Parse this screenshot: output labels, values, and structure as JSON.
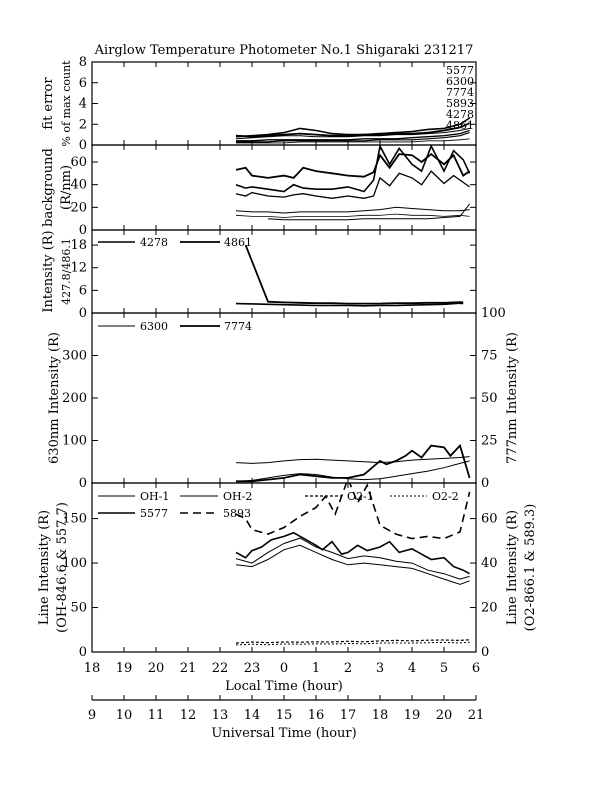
{
  "title": "Airglow Temperature Photometer No.1  Shigaraki  231217",
  "x_label_local": "Local Time (hour)",
  "x_label_ut": "Universal Time (hour)",
  "x_ticks_local": [
    "18",
    "19",
    "20",
    "21",
    "22",
    "23",
    "0",
    "1",
    "2",
    "3",
    "4",
    "5",
    "6"
  ],
  "x_ticks_ut": [
    "9",
    "10",
    "11",
    "12",
    "13",
    "14",
    "15",
    "16",
    "17",
    "18",
    "19",
    "20",
    "21"
  ],
  "chart_data": [
    {
      "id": "fit-error",
      "type": "line",
      "ylabel": "fit error",
      "ylabel2": "% of max count",
      "yticks": [
        "0",
        "2",
        "4",
        "6",
        "8"
      ],
      "ylim": [
        0,
        8
      ],
      "x_units": "local time hour (18-30, 24=0 LT)",
      "legend": [
        "5577",
        "6300",
        "7774",
        "5893",
        "4278",
        "4861"
      ],
      "series": [
        {
          "name": "5577",
          "x": [
            22.5,
            23,
            23.5,
            24,
            24.5,
            25,
            25.5,
            26,
            26.5,
            27,
            27.5,
            28,
            28.5,
            29,
            29.5,
            29.8
          ],
          "values": [
            0.8,
            0.9,
            1.0,
            1.2,
            1.6,
            1.4,
            1.1,
            1.0,
            1.0,
            1.1,
            1.2,
            1.3,
            1.5,
            1.6,
            2.0,
            2.6
          ]
        },
        {
          "name": "6300",
          "x": [
            22.5,
            23,
            23.5,
            24,
            24.5,
            25,
            25.5,
            26,
            26.5,
            27,
            27.5,
            28,
            28.5,
            29,
            29.5,
            29.8
          ],
          "values": [
            0.6,
            0.7,
            0.8,
            0.9,
            0.9,
            0.8,
            0.8,
            0.8,
            0.9,
            0.9,
            1.0,
            1.0,
            1.1,
            1.2,
            1.4,
            1.6
          ]
        },
        {
          "name": "7774",
          "x": [
            22.5,
            23,
            23.5,
            24,
            24.5,
            25,
            25.5,
            26,
            26.5,
            27,
            27.5,
            28,
            28.5,
            29,
            29.5,
            29.8
          ],
          "values": [
            0.4,
            0.4,
            0.5,
            0.5,
            0.5,
            0.5,
            0.5,
            0.5,
            0.6,
            0.6,
            0.6,
            0.7,
            0.8,
            0.9,
            1.1,
            1.4
          ]
        },
        {
          "name": "5893",
          "x": [
            22.5,
            23,
            23.5,
            24,
            24.5,
            25,
            25.5,
            26,
            26.5,
            27,
            27.5,
            28,
            28.5,
            29,
            29.5,
            29.8
          ],
          "values": [
            0.9,
            0.8,
            0.9,
            1.0,
            1.1,
            1.0,
            0.9,
            0.9,
            1.0,
            1.0,
            1.1,
            1.1,
            1.2,
            1.4,
            1.7,
            2.1
          ]
        },
        {
          "name": "4278",
          "x": [
            22.5,
            23,
            23.5,
            24,
            24.5,
            25,
            25.5,
            26,
            26.5,
            27,
            27.5,
            28,
            28.5,
            29,
            29.5,
            29.8
          ],
          "values": [
            0.2,
            0.2,
            0.2,
            0.2,
            0.3,
            0.3,
            0.3,
            0.3,
            0.3,
            0.3,
            0.3,
            0.3,
            0.4,
            0.4,
            0.5,
            0.6
          ]
        },
        {
          "name": "4861",
          "x": [
            22.5,
            23,
            23.5,
            24,
            24.5,
            25,
            25.5,
            26,
            26.5,
            27,
            27.5,
            28,
            28.5,
            29,
            29.5,
            29.8
          ],
          "values": [
            0.3,
            0.3,
            0.3,
            0.4,
            0.4,
            0.4,
            0.4,
            0.4,
            0.4,
            0.5,
            0.5,
            0.5,
            0.6,
            0.7,
            0.9,
            1.2
          ]
        }
      ]
    },
    {
      "id": "background",
      "type": "line",
      "ylabel": "background",
      "ylabel2": "(R/nm)",
      "yticks": [
        "0",
        "20",
        "40",
        "60"
      ],
      "ylim": [
        0,
        75
      ],
      "x_units": "local time hour (18-30, 24=0 LT)",
      "series": [
        {
          "x": [
            22.5,
            22.8,
            23,
            23.5,
            24,
            24.3,
            24.6,
            25,
            25.5,
            26,
            26.5,
            26.8,
            27,
            27.3,
            27.6,
            28,
            28.3,
            28.6,
            29,
            29.3,
            29.6,
            29.8
          ],
          "values": [
            53,
            55,
            48,
            46,
            48,
            46,
            55,
            52,
            50,
            48,
            47,
            51,
            66,
            55,
            67,
            66,
            60,
            67,
            58,
            66,
            48,
            52
          ]
        },
        {
          "x": [
            22.5,
            22.8,
            23,
            23.5,
            24,
            24.3,
            24.6,
            25,
            25.5,
            26,
            26.5,
            26.8,
            27,
            27.3,
            27.6,
            28,
            28.3,
            28.6,
            29,
            29.3,
            29.6,
            29.8
          ],
          "values": [
            40,
            37,
            38,
            36,
            34,
            40,
            37,
            36,
            36,
            38,
            34,
            44,
            74,
            58,
            72,
            58,
            52,
            74,
            52,
            70,
            62,
            50
          ]
        },
        {
          "x": [
            22.5,
            22.8,
            23,
            23.5,
            24,
            24.3,
            24.6,
            25,
            25.5,
            26,
            26.5,
            26.8,
            27,
            27.3,
            27.6,
            28,
            28.3,
            28.6,
            29,
            29.3,
            29.6,
            29.8
          ],
          "values": [
            32,
            30,
            33,
            30,
            29,
            31,
            32,
            30,
            28,
            30,
            28,
            30,
            46,
            39,
            50,
            46,
            40,
            52,
            41,
            48,
            42,
            38
          ]
        },
        {
          "x": [
            22.5,
            23,
            23.5,
            24,
            24.5,
            25,
            25.5,
            26,
            26.5,
            27,
            27.5,
            28,
            28.5,
            29,
            29.5,
            29.8
          ],
          "values": [
            17,
            16,
            16,
            15,
            16,
            16,
            16,
            16,
            17,
            18,
            20,
            19,
            18,
            17,
            17,
            18
          ]
        },
        {
          "x": [
            22.5,
            23,
            23.5,
            24,
            24.5,
            25,
            25.5,
            26,
            26.5,
            27,
            27.5,
            28,
            28.5,
            29,
            29.5,
            29.8
          ],
          "values": [
            13,
            12,
            12,
            11,
            12,
            12,
            12,
            12,
            13,
            13,
            14,
            13,
            13,
            12,
            13,
            12
          ]
        },
        {
          "x": [
            23.5,
            24,
            24.5,
            25,
            25.5,
            26,
            26.5,
            27,
            27.5,
            28,
            28.5,
            29,
            29.5,
            29.8
          ],
          "values": [
            10,
            9,
            9,
            9,
            9,
            9,
            10,
            10,
            10,
            10,
            10,
            11,
            12,
            23
          ]
        }
      ]
    },
    {
      "id": "intensity-4278-4861",
      "type": "line",
      "ylabel": "Intensity (R)",
      "ylabel2": "427.8/486.1",
      "yticks": [
        "0",
        "6",
        "12",
        "18"
      ],
      "ylim": [
        0,
        22
      ],
      "x_units": "local time hour (18-30, 24=0 LT)",
      "legend": [
        "4278",
        "4861"
      ],
      "series": [
        {
          "name": "4278",
          "x": [
            22.5,
            23,
            23.5,
            24,
            24.5,
            25,
            25.5,
            26,
            26.5,
            27,
            27.5,
            28,
            28.5,
            29,
            29.5,
            29.6
          ],
          "values": [
            2.5,
            2.4,
            2.3,
            2.2,
            2.1,
            2.0,
            2.0,
            2.0,
            1.9,
            2.0,
            2.0,
            2.1,
            2.2,
            2.3,
            2.6,
            2.5
          ]
        },
        {
          "name": "4861",
          "x": [
            22.8,
            23.5,
            24,
            24.5,
            25,
            25.5,
            26,
            26.5,
            27,
            27.5,
            28,
            28.5,
            29,
            29.5,
            29.6
          ],
          "values": [
            18,
            3,
            2.8,
            2.7,
            2.6,
            2.6,
            2.5,
            2.5,
            2.5,
            2.6,
            2.6,
            2.7,
            2.7,
            2.9,
            2.8
          ]
        }
      ]
    },
    {
      "id": "intensity-6300-7774",
      "type": "line",
      "ylabel": "630nm Intensity (R)",
      "ylabel_right": "777nm Intensity (R)",
      "yticks": [
        "0",
        "100",
        "200",
        "300"
      ],
      "ylim": [
        0,
        400
      ],
      "yticks_right": [
        "0",
        "25",
        "50",
        "75",
        "100"
      ],
      "ylim_right": [
        0,
        100
      ],
      "x_units": "local time hour (18-30, 24=0 LT)",
      "legend": [
        "6300",
        "7774"
      ],
      "series": [
        {
          "name": "6300",
          "axis": "left",
          "x": [
            22.5,
            23,
            23.5,
            24,
            24.5,
            25,
            25.5,
            26,
            26.5,
            27,
            27.5,
            28,
            28.5,
            29,
            29.5,
            29.8
          ],
          "values": [
            48,
            46,
            48,
            52,
            55,
            56,
            54,
            52,
            50,
            48,
            50,
            54,
            56,
            58,
            60,
            62
          ]
        },
        {
          "name": "7774",
          "axis": "right",
          "x": [
            22.5,
            23,
            23.5,
            24,
            24.5,
            25,
            25.5,
            26,
            26.5,
            27,
            27.2,
            27.5,
            27.8,
            28,
            28.3,
            28.6,
            29,
            29.2,
            29.5,
            29.8
          ],
          "values": [
            1,
            1,
            2,
            3,
            5,
            4,
            3,
            3,
            5,
            13,
            11,
            13,
            16,
            19,
            15,
            22,
            21,
            16,
            22,
            3
          ]
        },
        {
          "name": "",
          "axis": "left",
          "x": [
            22.5,
            23,
            23.5,
            24,
            24.5,
            25,
            25.5,
            26,
            26.5,
            27,
            27.5,
            28,
            28.5,
            29,
            29.5,
            29.8
          ],
          "values": [
            4,
            6,
            12,
            18,
            22,
            20,
            14,
            10,
            8,
            10,
            16,
            22,
            28,
            36,
            46,
            52
          ]
        }
      ]
    },
    {
      "id": "line-intensity",
      "type": "line",
      "ylabel": "Line Intensity (R)",
      "ylabel2": "(OH-846.6 & 557.7)",
      "ylabel_right": "Line Intensity (R)",
      "ylabel_right2": "(O2-866.1 & 589.3)",
      "yticks": [
        "0",
        "50",
        "100",
        "150"
      ],
      "ylim": [
        0,
        190
      ],
      "yticks_right": [
        "0",
        "20",
        "40",
        "60"
      ],
      "ylim_right": [
        0,
        76
      ],
      "x_units": "local time hour (18-30, 24=0 LT)",
      "legend": [
        "OH-1",
        "OH-2",
        "O2-1",
        "O2-2",
        "5577",
        "5893"
      ],
      "series": [
        {
          "name": "OH-1",
          "axis": "left",
          "x": [
            22.5,
            23,
            23.5,
            24,
            24.5,
            25,
            25.5,
            26,
            26.5,
            27,
            27.5,
            28,
            28.5,
            29,
            29.5,
            29.8
          ],
          "values": [
            105,
            100,
            112,
            122,
            128,
            118,
            112,
            105,
            108,
            106,
            102,
            100,
            92,
            88,
            82,
            85
          ]
        },
        {
          "name": "OH-2",
          "axis": "left",
          "x": [
            22.5,
            23,
            23.5,
            24,
            24.5,
            25,
            25.5,
            26,
            26.5,
            27,
            27.5,
            28,
            28.5,
            29,
            29.5,
            29.8
          ],
          "values": [
            98,
            96,
            104,
            115,
            120,
            112,
            104,
            98,
            100,
            98,
            96,
            94,
            88,
            82,
            76,
            80
          ]
        },
        {
          "name": "5577",
          "axis": "left",
          "x": [
            22.5,
            22.8,
            23,
            23.3,
            23.6,
            24,
            24.3,
            24.6,
            25,
            25.2,
            25.5,
            25.8,
            26,
            26.3,
            26.6,
            27,
            27.3,
            27.6,
            28,
            28.3,
            28.6,
            29,
            29.3,
            29.6,
            29.8
          ],
          "values": [
            112,
            106,
            114,
            118,
            126,
            130,
            134,
            128,
            120,
            115,
            124,
            110,
            112,
            120,
            114,
            118,
            124,
            112,
            116,
            110,
            104,
            106,
            96,
            92,
            88
          ]
        },
        {
          "name": "5893",
          "axis": "right",
          "x": [
            22.5,
            22.8,
            23,
            23.5,
            24,
            24.5,
            25,
            25.3,
            25.6,
            26,
            26.3,
            26.6,
            27,
            27.5,
            28,
            28.5,
            29,
            29.5,
            29.8
          ],
          "values": [
            62,
            60,
            55,
            53,
            56,
            61,
            65,
            70,
            62,
            78,
            67,
            75,
            57,
            53,
            51,
            52,
            51,
            54,
            72
          ]
        },
        {
          "name": "O2-1",
          "axis": "right",
          "x": [
            22.5,
            23,
            23.5,
            24,
            24.5,
            25,
            25.5,
            26,
            26.5,
            27,
            27.5,
            28,
            28.5,
            29,
            29.5,
            29.8
          ],
          "values": [
            4,
            4.5,
            4.2,
            4.5,
            4.4,
            4.6,
            4.5,
            4.8,
            4.6,
            5.0,
            5.2,
            5.0,
            5.3,
            5.4,
            5.2,
            5.5
          ]
        },
        {
          "name": "O2-2",
          "axis": "right",
          "x": [
            22.5,
            23,
            23.5,
            24,
            24.5,
            25,
            25.5,
            26,
            26.5,
            27,
            27.5,
            28,
            28.5,
            29,
            29.5,
            29.8
          ],
          "values": [
            3.2,
            3.5,
            3.3,
            3.6,
            3.5,
            3.7,
            3.6,
            3.8,
            3.7,
            4.0,
            4.1,
            4.0,
            4.2,
            4.3,
            4.1,
            4.4
          ]
        }
      ]
    }
  ]
}
